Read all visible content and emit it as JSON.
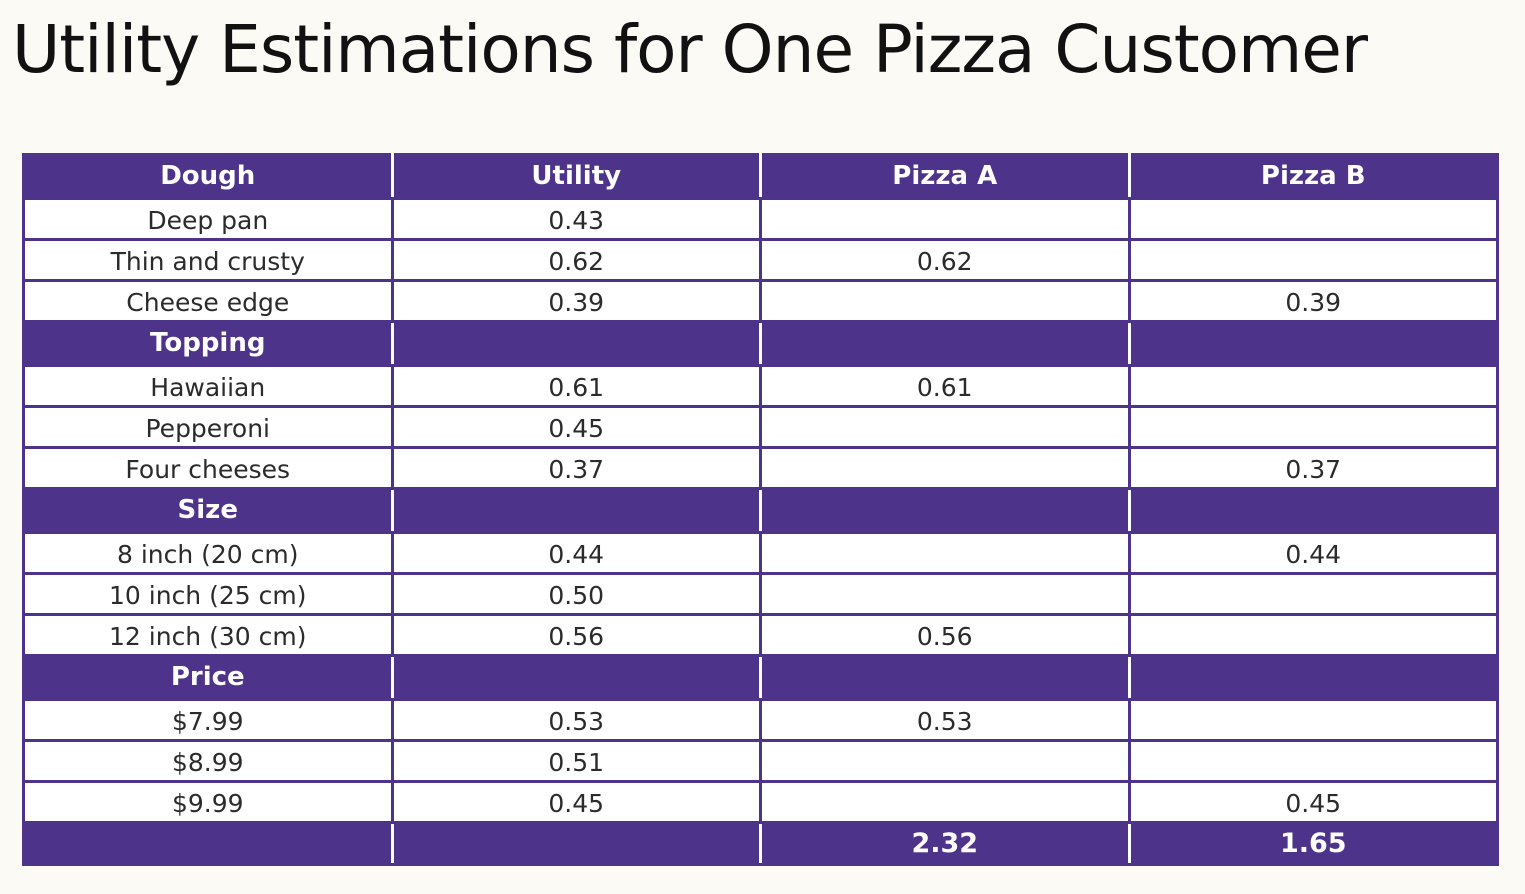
{
  "title": "Utility Estimations for One Pizza Customer",
  "colors": {
    "header_bg": "#4e338a",
    "header_text": "#ffffff",
    "cell_text": "#2b2b2b",
    "background": "#fbfaf5"
  },
  "table": {
    "columns": [
      "Dough",
      "Utility",
      "Pizza A",
      "Pizza B"
    ],
    "rows": [
      {
        "kind": "data",
        "cells": [
          "Deep pan",
          "0.43",
          "",
          ""
        ]
      },
      {
        "kind": "data",
        "cells": [
          "Thin and crusty",
          "0.62",
          "0.62",
          ""
        ]
      },
      {
        "kind": "data",
        "cells": [
          "Cheese edge",
          "0.39",
          "",
          "0.39"
        ]
      },
      {
        "kind": "header",
        "cells": [
          "Topping",
          "",
          "",
          ""
        ]
      },
      {
        "kind": "data",
        "cells": [
          "Hawaiian",
          "0.61",
          "0.61",
          ""
        ]
      },
      {
        "kind": "data",
        "cells": [
          "Pepperoni",
          "0.45",
          "",
          ""
        ]
      },
      {
        "kind": "data",
        "cells": [
          "Four cheeses",
          "0.37",
          "",
          "0.37"
        ]
      },
      {
        "kind": "header",
        "cells": [
          "Size",
          "",
          "",
          ""
        ]
      },
      {
        "kind": "data",
        "cells": [
          "8 inch (20 cm)",
          "0.44",
          "",
          "0.44"
        ]
      },
      {
        "kind": "data",
        "cells": [
          "10 inch (25 cm)",
          "0.50",
          "",
          ""
        ]
      },
      {
        "kind": "data",
        "cells": [
          "12 inch (30 cm)",
          "0.56",
          "0.56",
          ""
        ]
      },
      {
        "kind": "header",
        "cells": [
          "Price",
          "",
          "",
          ""
        ]
      },
      {
        "kind": "data",
        "cells": [
          "$7.99",
          "0.53",
          "0.53",
          ""
        ]
      },
      {
        "kind": "data",
        "cells": [
          "$8.99",
          "0.51",
          "",
          ""
        ]
      },
      {
        "kind": "data",
        "cells": [
          "$9.99",
          "0.45",
          "",
          "0.45"
        ]
      },
      {
        "kind": "total",
        "cells": [
          "",
          "",
          "2.32",
          "1.65"
        ]
      }
    ]
  }
}
